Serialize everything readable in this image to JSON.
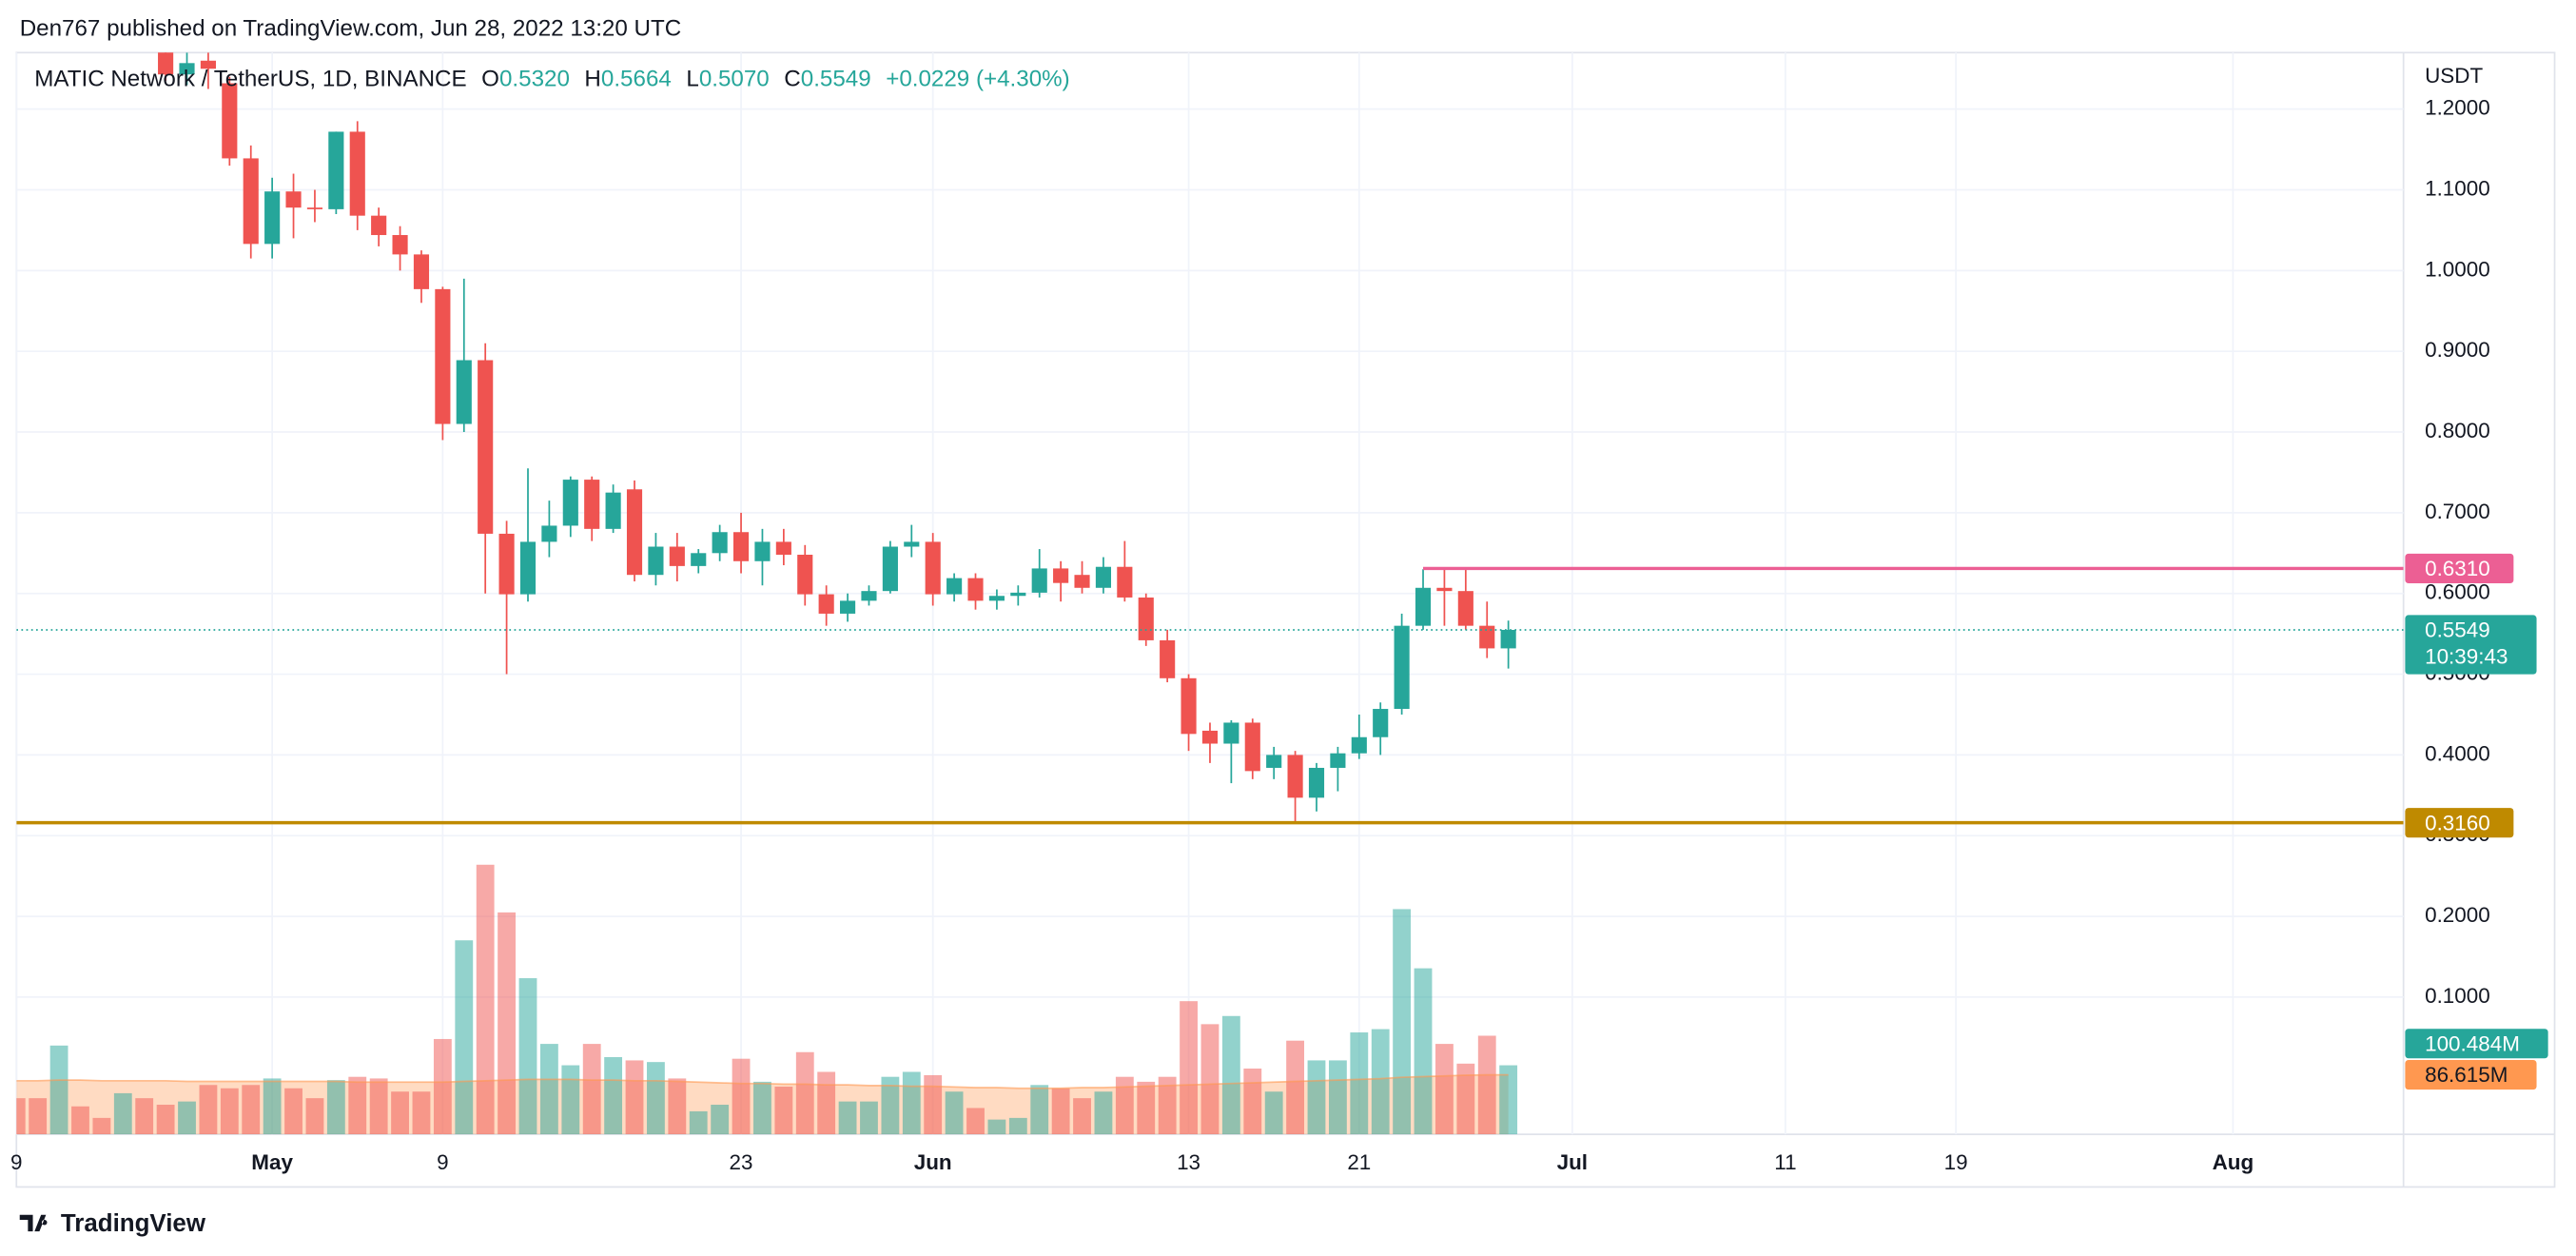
{
  "header": {
    "published": "Den767 published on TradingView.com, Jun 28, 2022 13:20 UTC"
  },
  "footer": {
    "brand": "TradingView"
  },
  "chart_data": {
    "type": "candlestick",
    "symbol": "MATIC Network / TetherUS, 1D, BINANCE",
    "legend": {
      "o_label": "O",
      "open": "0.5320",
      "h_label": "H",
      "high": "0.5664",
      "l_label": "L",
      "low": "0.5070",
      "c_label": "C",
      "close": "0.5549",
      "change": "+0.0229 (+4.30%)"
    },
    "y_unit": "USDT",
    "up_color": "#26a69a",
    "down_color": "#ef5350",
    "grid": true,
    "xlim": [
      "2022-04-19",
      "2022-08-09"
    ],
    "xticks": [
      {
        "value": "2022-04-19",
        "label": "9"
      },
      {
        "value": "2022-05-01",
        "label": "May"
      },
      {
        "value": "2022-05-09",
        "label": "9"
      },
      {
        "value": "2022-05-23",
        "label": "23"
      },
      {
        "value": "2022-06-01",
        "label": "Jun"
      },
      {
        "value": "2022-06-13",
        "label": "13"
      },
      {
        "value": "2022-06-21",
        "label": "21"
      },
      {
        "value": "2022-07-01",
        "label": "Jul"
      },
      {
        "value": "2022-07-11",
        "label": "11"
      },
      {
        "value": "2022-07-19",
        "label": "19"
      },
      {
        "value": "2022-08-01",
        "label": "Aug"
      }
    ],
    "ylim": [
      -0.07,
      1.27
    ],
    "yticks": [
      {
        "value": 0.1,
        "label": "0.1000"
      },
      {
        "value": 0.2,
        "label": "0.2000"
      },
      {
        "value": 0.3,
        "label": "0.3000"
      },
      {
        "value": 0.4,
        "label": "0.4000"
      },
      {
        "value": 0.5,
        "label": "0.5000"
      },
      {
        "value": 0.6,
        "label": "0.6000"
      },
      {
        "value": 0.7,
        "label": "0.7000"
      },
      {
        "value": 0.8,
        "label": "0.8000"
      },
      {
        "value": 0.9,
        "label": "0.9000"
      },
      {
        "value": 1.0,
        "label": "1.0000"
      },
      {
        "value": 1.1,
        "label": "1.1000"
      },
      {
        "value": 1.2,
        "label": "1.2000"
      }
    ],
    "x": [
      "2022-04-26",
      "2022-04-27",
      "2022-04-28",
      "2022-04-29",
      "2022-04-30",
      "2022-05-01",
      "2022-05-02",
      "2022-05-03",
      "2022-05-04",
      "2022-05-05",
      "2022-05-06",
      "2022-05-07",
      "2022-05-08",
      "2022-05-09",
      "2022-05-10",
      "2022-05-11",
      "2022-05-12",
      "2022-05-13",
      "2022-05-14",
      "2022-05-15",
      "2022-05-16",
      "2022-05-17",
      "2022-05-18",
      "2022-05-19",
      "2022-05-20",
      "2022-05-21",
      "2022-05-22",
      "2022-05-23",
      "2022-05-24",
      "2022-05-25",
      "2022-05-26",
      "2022-05-27",
      "2022-05-28",
      "2022-05-29",
      "2022-05-30",
      "2022-05-31",
      "2022-06-01",
      "2022-06-02",
      "2022-06-03",
      "2022-06-04",
      "2022-06-05",
      "2022-06-06",
      "2022-06-07",
      "2022-06-08",
      "2022-06-09",
      "2022-06-10",
      "2022-06-11",
      "2022-06-12",
      "2022-06-13",
      "2022-06-14",
      "2022-06-15",
      "2022-06-16",
      "2022-06-17",
      "2022-06-18",
      "2022-06-19",
      "2022-06-20",
      "2022-06-21",
      "2022-06-22",
      "2022-06-23",
      "2022-06-24",
      "2022-06-25",
      "2022-06-26",
      "2022-06-27",
      "2022-06-28"
    ],
    "open": [
      1.28,
      1.243,
      1.26,
      1.232,
      1.139,
      1.033,
      1.098,
      1.078,
      1.076,
      1.172,
      1.068,
      1.044,
      1.02,
      0.977,
      0.81,
      0.889,
      0.674,
      0.599,
      0.664,
      0.684,
      0.741,
      0.68,
      0.729,
      0.623,
      0.658,
      0.634,
      0.65,
      0.676,
      0.64,
      0.664,
      0.648,
      0.599,
      0.575,
      0.591,
      0.603,
      0.658,
      0.664,
      0.599,
      0.619,
      0.591,
      0.597,
      0.601,
      0.631,
      0.623,
      0.607,
      0.633,
      0.595,
      0.542,
      0.495,
      0.43,
      0.414,
      0.44,
      0.384,
      0.4,
      0.347,
      0.384,
      0.402,
      0.422,
      0.457,
      0.56,
      0.607,
      0.603,
      0.56,
      0.532
    ],
    "high": [
      1.3,
      1.27,
      1.27,
      1.24,
      1.155,
      1.115,
      1.12,
      1.1,
      1.172,
      1.185,
      1.078,
      1.055,
      1.025,
      0.98,
      0.99,
      0.91,
      0.69,
      0.755,
      0.715,
      0.745,
      0.745,
      0.735,
      0.74,
      0.675,
      0.675,
      0.655,
      0.685,
      0.7,
      0.68,
      0.68,
      0.66,
      0.61,
      0.6,
      0.61,
      0.665,
      0.685,
      0.675,
      0.625,
      0.625,
      0.605,
      0.61,
      0.655,
      0.64,
      0.64,
      0.645,
      0.665,
      0.6,
      0.555,
      0.5,
      0.44,
      0.443,
      0.445,
      0.41,
      0.405,
      0.39,
      0.41,
      0.45,
      0.465,
      0.575,
      0.63,
      0.631,
      0.631,
      0.59,
      0.5664
    ],
    "low": [
      1.235,
      1.23,
      1.225,
      1.13,
      1.015,
      1.015,
      1.04,
      1.06,
      1.07,
      1.05,
      1.03,
      1.0,
      0.96,
      0.79,
      0.8,
      0.6,
      0.5,
      0.59,
      0.645,
      0.67,
      0.665,
      0.675,
      0.615,
      0.61,
      0.615,
      0.625,
      0.64,
      0.625,
      0.61,
      0.635,
      0.585,
      0.56,
      0.565,
      0.585,
      0.6,
      0.645,
      0.585,
      0.59,
      0.58,
      0.58,
      0.585,
      0.595,
      0.59,
      0.6,
      0.6,
      0.59,
      0.535,
      0.49,
      0.405,
      0.39,
      0.365,
      0.37,
      0.37,
      0.317,
      0.33,
      0.355,
      0.395,
      0.4,
      0.45,
      0.555,
      0.56,
      0.555,
      0.52,
      0.507
    ],
    "close": [
      1.243,
      1.257,
      1.25,
      1.139,
      1.033,
      1.098,
      1.078,
      1.076,
      1.172,
      1.068,
      1.044,
      1.02,
      0.977,
      0.81,
      0.889,
      0.674,
      0.599,
      0.664,
      0.684,
      0.741,
      0.68,
      0.725,
      0.623,
      0.658,
      0.634,
      0.65,
      0.676,
      0.64,
      0.664,
      0.648,
      0.599,
      0.575,
      0.591,
      0.603,
      0.658,
      0.664,
      0.599,
      0.619,
      0.591,
      0.597,
      0.601,
      0.631,
      0.613,
      0.607,
      0.633,
      0.595,
      0.542,
      0.495,
      0.426,
      0.414,
      0.44,
      0.38,
      0.4,
      0.347,
      0.384,
      0.402,
      0.422,
      0.457,
      0.56,
      0.607,
      0.603,
      0.56,
      0.532,
      0.5549
    ],
    "last_price": 0.5549,
    "last_color": "#26a69a",
    "countdown": "10:39:43",
    "hlines": [
      {
        "value": 0.631,
        "label": "0.6310",
        "color": "#ec5f94",
        "start": "2022-06-24"
      },
      {
        "value": 0.316,
        "label": "0.3160",
        "color": "#bf8a00"
      }
    ],
    "volume": {
      "x": [
        "2022-04-19",
        "2022-04-20",
        "2022-04-21",
        "2022-04-22",
        "2022-04-23",
        "2022-04-24",
        "2022-04-25",
        "2022-04-26",
        "2022-04-27",
        "2022-04-28",
        "2022-04-29",
        "2022-04-30",
        "2022-05-01",
        "2022-05-02",
        "2022-05-03",
        "2022-05-04",
        "2022-05-05",
        "2022-05-06",
        "2022-05-07",
        "2022-05-08",
        "2022-05-09",
        "2022-05-10",
        "2022-05-11",
        "2022-05-12",
        "2022-05-13",
        "2022-05-14",
        "2022-05-15",
        "2022-05-16",
        "2022-05-17",
        "2022-05-18",
        "2022-05-19",
        "2022-05-20",
        "2022-05-21",
        "2022-05-22",
        "2022-05-23",
        "2022-05-24",
        "2022-05-25",
        "2022-05-26",
        "2022-05-27",
        "2022-05-28",
        "2022-05-29",
        "2022-05-30",
        "2022-05-31",
        "2022-06-01",
        "2022-06-02",
        "2022-06-03",
        "2022-06-04",
        "2022-06-05",
        "2022-06-06",
        "2022-06-07",
        "2022-06-08",
        "2022-06-09",
        "2022-06-10",
        "2022-06-11",
        "2022-06-12",
        "2022-06-13",
        "2022-06-14",
        "2022-06-15",
        "2022-06-16",
        "2022-06-17",
        "2022-06-18",
        "2022-06-19",
        "2022-06-20",
        "2022-06-21",
        "2022-06-22",
        "2022-06-23",
        "2022-06-24",
        "2022-06-25",
        "2022-06-26",
        "2022-06-27",
        "2022-06-28"
      ],
      "values": [
        52.6,
        52.6,
        129.2,
        40.7,
        23.9,
        59.8,
        52.6,
        43.1,
        47.8,
        71.8,
        67.0,
        71.8,
        81.3,
        67.0,
        52.6,
        78.9,
        83.7,
        81.3,
        62.2,
        62.2,
        138.7,
        282.3,
        392.3,
        322.9,
        227.2,
        131.6,
        100.5,
        131.6,
        112.4,
        107.6,
        105.2,
        81.3,
        33.5,
        43.1,
        110.0,
        76.5,
        69.4,
        119.6,
        90.9,
        47.8,
        47.8,
        83.7,
        90.9,
        86.1,
        62.2,
        38.3,
        21.5,
        23.9,
        71.8,
        67.0,
        52.6,
        62.2,
        83.7,
        76.5,
        83.7,
        193.8,
        160.3,
        172.2,
        95.7,
        62.2,
        136.3,
        107.6,
        107.6,
        148.3,
        153.1,
        327.7,
        241.6,
        131.6,
        102.9,
        143.5,
        100.484
      ],
      "colors": [
        "#ef5350",
        "#ef5350",
        "#26a69a",
        "#ef5350",
        "#ef5350",
        "#26a69a",
        "#ef5350",
        "#ef5350",
        "#26a69a",
        "#ef5350",
        "#ef5350",
        "#ef5350",
        "#26a69a",
        "#ef5350",
        "#ef5350",
        "#26a69a",
        "#ef5350",
        "#ef5350",
        "#ef5350",
        "#ef5350",
        "#ef5350",
        "#26a69a",
        "#ef5350",
        "#ef5350",
        "#26a69a",
        "#26a69a",
        "#26a69a",
        "#ef5350",
        "#26a69a",
        "#ef5350",
        "#26a69a",
        "#ef5350",
        "#26a69a",
        "#26a69a",
        "#ef5350",
        "#26a69a",
        "#ef5350",
        "#ef5350",
        "#ef5350",
        "#26a69a",
        "#26a69a",
        "#26a69a",
        "#26a69a",
        "#ef5350",
        "#26a69a",
        "#ef5350",
        "#26a69a",
        "#26a69a",
        "#26a69a",
        "#ef5350",
        "#ef5350",
        "#26a69a",
        "#ef5350",
        "#ef5350",
        "#ef5350",
        "#ef5350",
        "#ef5350",
        "#26a69a",
        "#ef5350",
        "#26a69a",
        "#ef5350",
        "#26a69a",
        "#26a69a",
        "#26a69a",
        "#26a69a",
        "#26a69a",
        "#26a69a",
        "#ef5350",
        "#ef5350",
        "#ef5350",
        "#26a69a"
      ],
      "last_label": "100.484M",
      "ma": [
        78,
        78,
        79,
        79,
        78,
        78,
        78,
        78,
        77,
        77,
        77,
        77,
        77,
        77,
        77,
        77,
        76,
        76,
        76,
        76,
        76,
        77,
        78,
        79,
        80,
        80,
        80,
        79,
        79,
        78,
        78,
        77,
        76,
        75,
        74,
        74,
        73,
        73,
        72,
        72,
        71,
        71,
        70,
        70,
        69,
        68,
        68,
        67,
        67,
        67,
        68,
        68,
        69,
        70,
        71,
        72,
        73,
        74,
        75,
        76,
        77,
        78,
        79,
        80,
        81,
        83,
        84,
        85,
        86,
        86.5,
        86.615
      ],
      "ma_color": "#ff9850",
      "ma_last_label": "86.615M"
    }
  }
}
